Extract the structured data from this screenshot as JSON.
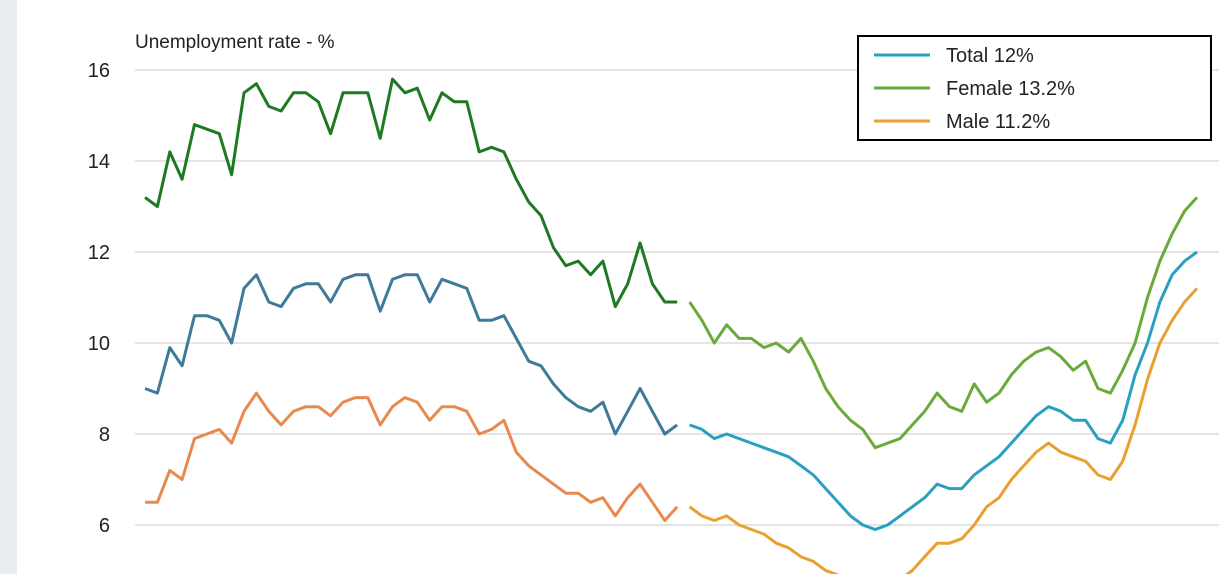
{
  "chart_data": {
    "type": "line",
    "ylabel": "Unemployment rate - %",
    "ylim": [
      5,
      16.5
    ],
    "yticks": [
      6,
      8,
      10,
      12,
      14,
      16
    ],
    "grid": true,
    "legend_position": "top-right",
    "legend": [
      {
        "label": "Total 12%",
        "color": "#2aa0c0"
      },
      {
        "label": "Female 13.2%",
        "color": "#6aaa3a"
      },
      {
        "label": "Male 11.2%",
        "color": "#e8a030"
      }
    ],
    "series": [
      {
        "name": "Female 13.2%",
        "segments": [
          {
            "color": "#1e7a22",
            "values": [
              13.2,
              13.0,
              14.2,
              13.6,
              14.8,
              14.7,
              14.6,
              13.7,
              15.5,
              15.7,
              15.2,
              15.1,
              15.5,
              15.5,
              15.3,
              14.6,
              15.5,
              15.5,
              15.5,
              14.5,
              15.8,
              15.5,
              15.6,
              14.9,
              15.5,
              15.3,
              15.3,
              14.2,
              14.3,
              14.2,
              13.6,
              13.1,
              12.8,
              12.1,
              11.7,
              11.8,
              11.5,
              11.8,
              10.8,
              11.3,
              12.2,
              11.3,
              10.9,
              10.9
            ]
          },
          {
            "color": "#6aaa3a",
            "values": [
              10.9,
              10.5,
              10.0,
              10.4,
              10.1,
              10.1,
              9.9,
              10.0,
              9.8,
              10.1,
              9.6,
              9.0,
              8.6,
              8.3,
              8.1,
              7.7,
              7.8,
              7.9,
              8.2,
              8.5,
              8.9,
              8.6,
              8.5,
              9.1,
              8.7,
              8.9,
              9.3,
              9.6,
              9.8,
              9.9,
              9.7,
              9.4,
              9.6,
              9.0,
              8.9,
              9.4,
              10.0,
              11.0,
              11.8,
              12.4,
              12.9,
              13.2
            ]
          }
        ]
      },
      {
        "name": "Total 12%",
        "segments": [
          {
            "color": "#3e7a99",
            "values": [
              9.0,
              8.9,
              9.9,
              9.5,
              10.6,
              10.6,
              10.5,
              10.0,
              11.2,
              11.5,
              10.9,
              10.8,
              11.2,
              11.3,
              11.3,
              10.9,
              11.4,
              11.5,
              11.5,
              10.7,
              11.4,
              11.5,
              11.5,
              10.9,
              11.4,
              11.3,
              11.2,
              10.5,
              10.5,
              10.6,
              10.1,
              9.6,
              9.5,
              9.1,
              8.8,
              8.6,
              8.5,
              8.7,
              8.0,
              8.5,
              9.0,
              8.5,
              8.0,
              8.2
            ]
          },
          {
            "color": "#2aa0c0",
            "values": [
              8.2,
              8.1,
              7.9,
              8.0,
              7.9,
              7.8,
              7.7,
              7.6,
              7.5,
              7.3,
              7.1,
              6.8,
              6.5,
              6.2,
              6.0,
              5.9,
              6.0,
              6.2,
              6.4,
              6.6,
              6.9,
              6.8,
              6.8,
              7.1,
              7.3,
              7.5,
              7.8,
              8.1,
              8.4,
              8.6,
              8.5,
              8.3,
              8.3,
              7.9,
              7.8,
              8.3,
              9.3,
              10.0,
              10.9,
              11.5,
              11.8,
              12.0
            ]
          }
        ]
      },
      {
        "name": "Male 11.2%",
        "segments": [
          {
            "color": "#e88a50",
            "values": [
              6.5,
              6.5,
              7.2,
              7.0,
              7.9,
              8.0,
              8.1,
              7.8,
              8.5,
              8.9,
              8.5,
              8.2,
              8.5,
              8.6,
              8.6,
              8.4,
              8.7,
              8.8,
              8.8,
              8.2,
              8.6,
              8.8,
              8.7,
              8.3,
              8.6,
              8.6,
              8.5,
              8.0,
              8.1,
              8.3,
              7.6,
              7.3,
              7.1,
              6.9,
              6.7,
              6.7,
              6.5,
              6.6,
              6.2,
              6.6,
              6.9,
              6.5,
              6.1,
              6.4
            ]
          },
          {
            "color": "#e8a030",
            "values": [
              6.4,
              6.2,
              6.1,
              6.2,
              6.0,
              5.9,
              5.8,
              5.6,
              5.5,
              5.3,
              5.2,
              5.0,
              4.9,
              4.8,
              4.8,
              4.7,
              4.7,
              4.8,
              5.0,
              5.3,
              5.6,
              5.6,
              5.7,
              6.0,
              6.4,
              6.6,
              7.0,
              7.3,
              7.6,
              7.8,
              7.6,
              7.5,
              7.4,
              7.1,
              7.0,
              7.4,
              8.2,
              9.2,
              10.0,
              10.5,
              10.9,
              11.2
            ]
          }
        ]
      }
    ]
  }
}
